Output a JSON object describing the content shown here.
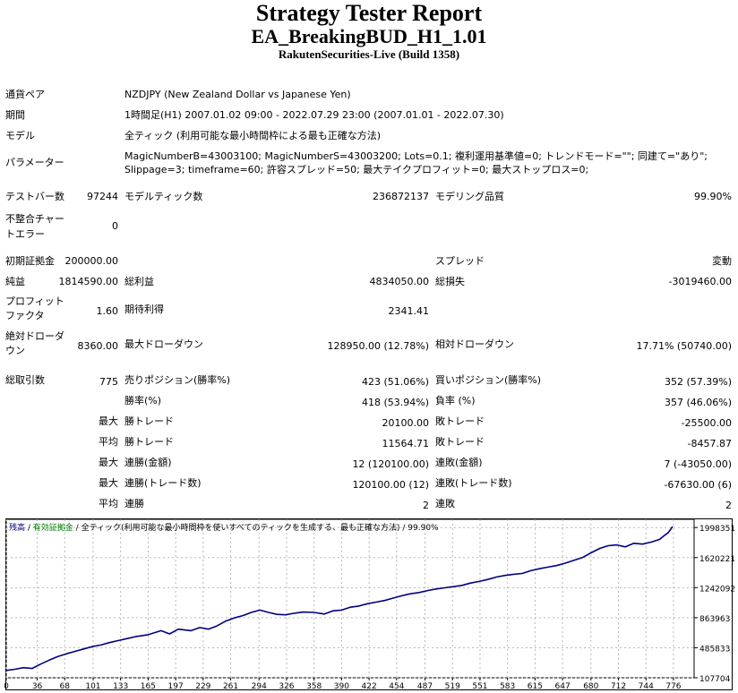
{
  "header": {
    "title": "Strategy Tester Report",
    "subtitle": "EA_BreakingBUD_H1_1.01",
    "server": "RakutenSecurities-Live (Build 1358)"
  },
  "info": {
    "symbol_label": "通貨ペア",
    "symbol_value": "NZDJPY (New Zealand Dollar vs Japanese Yen)",
    "period_label": "期間",
    "period_value": "1時間足(H1) 2007.01.02 09:00 - 2022.07.29 23:00 (2007.01.01 - 2022.07.30)",
    "model_label": "モデル",
    "model_value": "全ティック (利用可能な最小時間枠による最も正確な方法)",
    "params_label": "パラメーター",
    "params_value": "MagicNumberB=43003100; MagicNumberS=43003200; Lots=0.1; 複利運用基準値=0; トレンドモード=\"\"; 同建て=\"あり\"; Slippage=3; timeframe=60; 許容スプレッド=50; 最大テイクプロフィット=0; 最大ストップロス=0;"
  },
  "stats": {
    "bars_label": "テストバー数",
    "bars_value": "97244",
    "ticks_label": "モデルティック数",
    "ticks_value": "236872137",
    "quality_label": "モデリング品質",
    "quality_value": "99.90%",
    "mismatch_label": "不整合チャートエラー",
    "mismatch_value": "0",
    "deposit_label": "初期証拠金",
    "deposit_value": "200000.00",
    "spread_label": "スプレッド",
    "spread_value": "変動",
    "net_label": "純益",
    "net_value": "1814590.00",
    "gross_profit_label": "総利益",
    "gross_profit_value": "4834050.00",
    "gross_loss_label": "総損失",
    "gross_loss_value": "-3019460.00",
    "pf_label": "プロフィットファクタ",
    "pf_value": "1.60",
    "expected_label": "期待利得",
    "expected_value": "2341.41",
    "abs_dd_label": "絶対ドローダウン",
    "abs_dd_value": "8360.00",
    "max_dd_label": "最大ドローダウン",
    "max_dd_value": "128950.00 (12.78%)",
    "rel_dd_label": "相対ドローダウン",
    "rel_dd_value": "17.71% (50740.00)",
    "trades_label": "総取引数",
    "trades_value": "775",
    "short_label": "売りポジション(勝率%)",
    "short_value": "423 (51.06%)",
    "long_label": "買いポジション(勝率%)",
    "long_value": "352 (57.39%)",
    "win_label": "勝率(%)",
    "win_value": "418 (53.94%)",
    "loss_label": "負率 (%)",
    "loss_value": "357 (46.06%)",
    "max_prefix": "最大",
    "avg_prefix": "平均",
    "largest_win_label": "勝トレード",
    "largest_win_value": "20100.00",
    "largest_loss_label": "敗トレード",
    "largest_loss_value": "-25500.00",
    "avg_win_label": "勝トレード",
    "avg_win_value": "11564.71",
    "avg_loss_label": "敗トレード",
    "avg_loss_value": "-8457.87",
    "cons_win_amt_label": "連勝(金額)",
    "cons_win_amt_value": "12 (120100.00)",
    "cons_loss_amt_label": "連敗(金額)",
    "cons_loss_amt_value": "7 (-43050.00)",
    "cons_win_cnt_label": "連勝(トレード数)",
    "cons_win_cnt_value": "120100.00 (12)",
    "cons_loss_cnt_label": "連敗(トレード数)",
    "cons_loss_cnt_value": "-67630.00 (6)",
    "avg_cons_win_label": "連勝",
    "avg_cons_win_value": "2",
    "avg_cons_loss_label": "連敗",
    "avg_cons_loss_value": "2"
  },
  "chart_data": {
    "type": "line",
    "legend": {
      "balance": "残高",
      "sep1": " / ",
      "equity": "有効証拠金",
      "sep2": " / ",
      "model": "全ティック(利用可能な最小時間枠を使いすべてのティックを生成する、最も正確な方法)",
      "sep3": " / ",
      "quality": "99.90%"
    },
    "colors": {
      "balance": "#000080",
      "equity": "#008000",
      "grid": "#b8b8b8",
      "axis": "#000000"
    },
    "x_ticks": [
      0,
      36,
      68,
      101,
      133,
      165,
      197,
      229,
      261,
      294,
      326,
      358,
      390,
      422,
      454,
      487,
      519,
      551,
      583,
      615,
      647,
      680,
      712,
      744,
      776
    ],
    "y_ticks": [
      107704,
      485833,
      863963,
      1242092,
      1620221,
      1998351
    ],
    "xlim": [
      0,
      800
    ],
    "ylim": [
      107704,
      2102000
    ],
    "series": [
      {
        "x": [
          0,
          10,
          20,
          30,
          40,
          50,
          60,
          70,
          80,
          90,
          100,
          110,
          120,
          130,
          140,
          150,
          165,
          180,
          190,
          200,
          215,
          225,
          235,
          245,
          255,
          265,
          275,
          285,
          295,
          305,
          315,
          325,
          335,
          345,
          358,
          370,
          380,
          390,
          400,
          410,
          420,
          430,
          440,
          450,
          460,
          470,
          480,
          490,
          500,
          510,
          520,
          530,
          540,
          550,
          560,
          570,
          580,
          590,
          600,
          610,
          620,
          630,
          640,
          650,
          660,
          670,
          680,
          690,
          700,
          710,
          720,
          730,
          740,
          750,
          760,
          765,
          770,
          775
        ],
        "y": [
          200000,
          215000,
          235000,
          225000,
          280000,
          330000,
          375000,
          410000,
          440000,
          470000,
          500000,
          520000,
          550000,
          575000,
          600000,
          625000,
          650000,
          700000,
          660000,
          720000,
          700000,
          740000,
          720000,
          760000,
          820000,
          860000,
          890000,
          930000,
          960000,
          930000,
          905000,
          900000,
          920000,
          935000,
          930000,
          910000,
          950000,
          960000,
          995000,
          1010000,
          1040000,
          1060000,
          1080000,
          1110000,
          1140000,
          1165000,
          1180000,
          1205000,
          1225000,
          1240000,
          1255000,
          1270000,
          1300000,
          1320000,
          1345000,
          1375000,
          1395000,
          1410000,
          1420000,
          1455000,
          1480000,
          1500000,
          1520000,
          1550000,
          1585000,
          1620000,
          1680000,
          1735000,
          1770000,
          1780000,
          1755000,
          1800000,
          1790000,
          1815000,
          1850000,
          1895000,
          1935000,
          2012000
        ]
      }
    ]
  }
}
